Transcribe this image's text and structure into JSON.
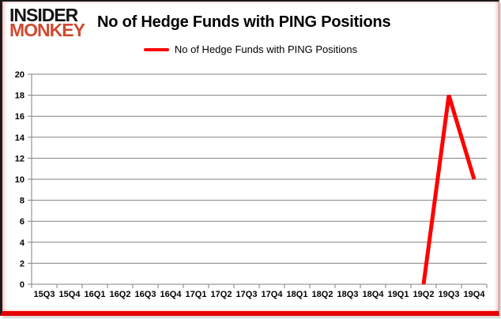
{
  "brand": {
    "line1": "INSIDER",
    "line2": "MONKEY",
    "line2_color": "#cf4a31"
  },
  "header": {
    "title": "No of Hedge Funds with PING Positions"
  },
  "legend": {
    "label": "No of Hedge Funds with PING Positions"
  },
  "frame": {
    "bottom_bar_color": "#e60000"
  },
  "chart_data": {
    "type": "line",
    "title": "No of Hedge Funds with PING Positions",
    "categories": [
      "15Q3",
      "15Q4",
      "16Q1",
      "16Q2",
      "16Q3",
      "16Q4",
      "17Q1",
      "17Q2",
      "17Q3",
      "17Q4",
      "18Q1",
      "18Q2",
      "18Q3",
      "18Q4",
      "19Q1",
      "19Q2",
      "19Q3",
      "19Q4"
    ],
    "series": [
      {
        "name": "No of Hedge Funds with PING Positions",
        "color": "#ff0000",
        "values": [
          null,
          null,
          null,
          null,
          null,
          null,
          null,
          null,
          null,
          null,
          null,
          null,
          null,
          null,
          null,
          0,
          18,
          10
        ]
      }
    ],
    "xlabel": "",
    "ylabel": "",
    "ylim": [
      0,
      20
    ],
    "ytick_step": 2,
    "grid": true,
    "grid_color": "#808080",
    "legend_position": "top",
    "tick_label_size": 11
  }
}
